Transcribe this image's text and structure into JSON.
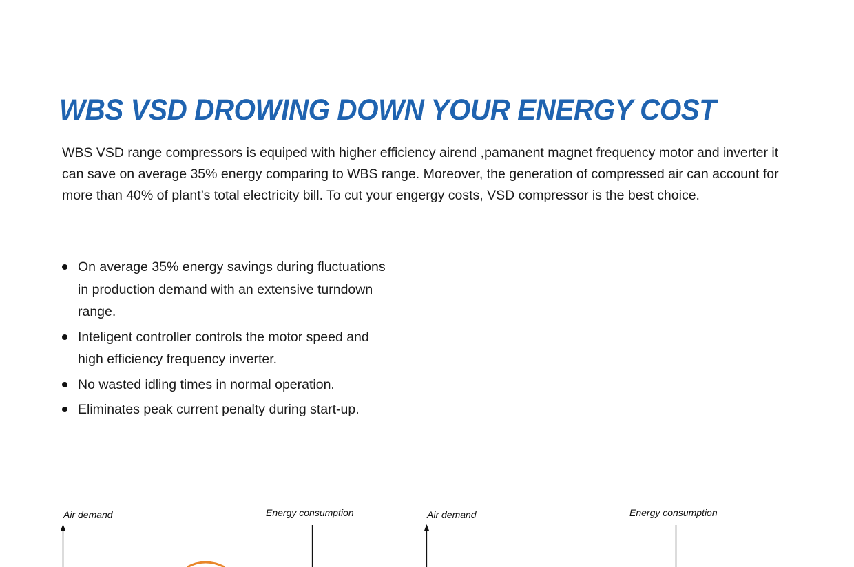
{
  "title": "WBS VSD DROWING DOWN YOUR ENERGY COST",
  "intro": "WBS VSD range compressors is equiped with higher efficiency airend ,pamanent magnet frequency motor and inverter it can save on average 35% energy comparing to WBS range. Moreover, the generation of compressed air can account for more than 40% of plant’s total electricity bill. To cut your engergy costs, VSD compressor is the best choice.",
  "bullets": [
    "On average 35% energy savings during fluctuations in production demand with an extensive turndown range.",
    "Inteligent controller controls the motor speed and high efficiency frequency inverter.",
    "No wasted idling times in normal operation.",
    "Eliminates peak current penalty during start-up."
  ],
  "diagrams": [
    {
      "air_demand_label": "Air demand",
      "energy_label": "Energy consumption"
    },
    {
      "air_demand_label": "Air demand",
      "energy_label": "Energy consumption"
    }
  ],
  "colors": {
    "title": "#1f63b0",
    "curve": "#e8862a"
  }
}
